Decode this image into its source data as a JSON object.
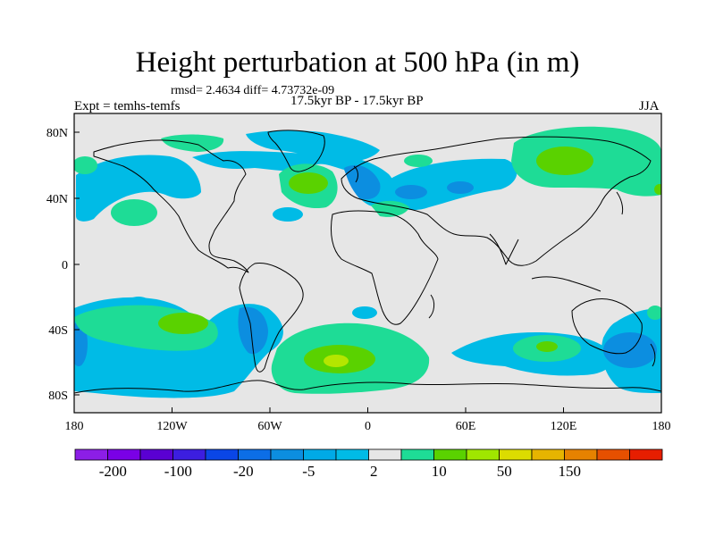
{
  "map": {
    "title": "Height perturbation at 500 hPa (in m)",
    "stats_line": "rmsd= 2.4634 diff= 4.73732e-09",
    "experiment_label": "Expt = temhs-temfs",
    "period_label": "17.5kyr BP - 17.5kyr BP",
    "season_label": "JJA",
    "lat_ticks": [
      "80N",
      "40N",
      "0",
      "40S",
      "80S"
    ],
    "lon_ticks": [
      "180",
      "120W",
      "60W",
      "0",
      "60E",
      "120E",
      "180"
    ],
    "colors": {
      "background_missing": "#e6e6e6",
      "coast": "#000000",
      "neg_strong": "#0c8ee0",
      "neg_weak": "#00bbe6",
      "pos_weak": "#1edc96",
      "pos_mid": "#5ad200",
      "pos_strong": "#b4e600"
    }
  },
  "colorbar": {
    "colors": [
      "#8c1ee6",
      "#7a00e6",
      "#5a00d2",
      "#3c1ee0",
      "#0a46e6",
      "#0c6ee6",
      "#0c8ee0",
      "#00aae6",
      "#00bbe6",
      "#e6e6e6",
      "#1edc96",
      "#5ad200",
      "#a0e600",
      "#dcdc00",
      "#e6b400",
      "#e68200",
      "#e65000",
      "#e61e00"
    ],
    "labels": [
      "-200",
      "-100",
      "-20",
      "-5",
      "2",
      "10",
      "50",
      "150"
    ]
  }
}
